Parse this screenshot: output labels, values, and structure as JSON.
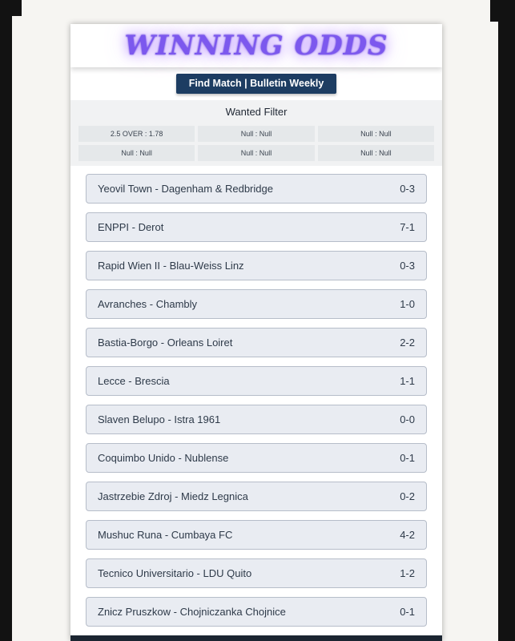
{
  "title": "WINNING ODDS",
  "nav_button": "Find Match | Bulletin Weekly",
  "filter": {
    "title": "Wanted Filter",
    "cells": [
      [
        "2.5 OVER : 1.78",
        "Null : Null",
        "Null : Null"
      ],
      [
        "Null : Null",
        "Null : Null",
        "Null : Null"
      ]
    ]
  },
  "matches": [
    {
      "name": "Yeovil Town - Dagenham & Redbridge",
      "score": "0-3"
    },
    {
      "name": "ENPPI - Derot",
      "score": "7-1"
    },
    {
      "name": "Rapid Wien II - Blau-Weiss Linz",
      "score": "0-3"
    },
    {
      "name": "Avranches - Chambly",
      "score": "1-0"
    },
    {
      "name": "Bastia-Borgo - Orleans Loiret",
      "score": "2-2"
    },
    {
      "name": "Lecce - Brescia",
      "score": "1-1"
    },
    {
      "name": "Slaven Belupo - Istra 1961",
      "score": "0-0"
    },
    {
      "name": "Coquimbo Unido - Nublense",
      "score": "0-1"
    },
    {
      "name": "Jastrzebie Zdroj - Miedz Legnica",
      "score": "0-2"
    },
    {
      "name": "Mushuc Runa - Cumbaya FC",
      "score": "4-2"
    },
    {
      "name": "Tecnico Universitario - LDU Quito",
      "score": "1-2"
    },
    {
      "name": "Znicz Pruszkow - Chojniczanka Chojnice",
      "score": "0-1"
    }
  ],
  "colors": {
    "title_accent": "#7c58ee",
    "nav_bar": "#1d3d62",
    "row_background": "#e9ecf2",
    "row_border": "#b6bdc9",
    "filter_panel": "#f1f2f3"
  }
}
